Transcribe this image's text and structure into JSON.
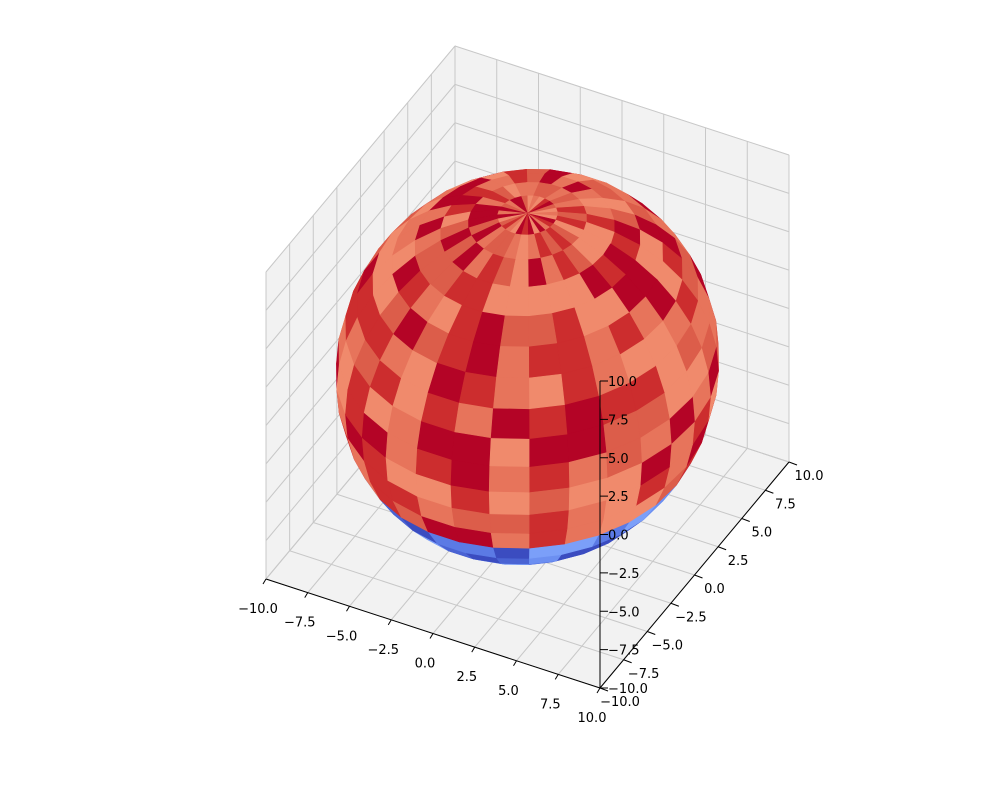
{
  "chart_data": {
    "type": "surface3d",
    "shape": "sphere",
    "radius": 10,
    "center": [
      0,
      0,
      0
    ],
    "xlim": [
      -10,
      10
    ],
    "ylim": [
      -10,
      10
    ],
    "zlim": [
      -10,
      10
    ],
    "x_ticks": [
      -10.0,
      -7.5,
      -5.0,
      -2.5,
      0.0,
      2.5,
      5.0,
      7.5,
      10.0
    ],
    "y_ticks": [
      -10.0,
      -7.5,
      -5.0,
      -2.5,
      0.0,
      2.5,
      5.0,
      7.5,
      10.0
    ],
    "z_ticks": [
      -10.0,
      -7.5,
      -5.0,
      -2.5,
      0.0,
      2.5,
      5.0,
      7.5,
      10.0
    ],
    "x_tick_labels": [
      "−10.0",
      "−7.5",
      "−5.0",
      "−2.5",
      "0.0",
      "2.5",
      "5.0",
      "7.5",
      "10.0"
    ],
    "y_tick_labels": [
      "−10.0",
      "−7.5",
      "−5.0",
      "−2.5",
      "0.0",
      "2.5",
      "5.0",
      "7.5",
      "10.0"
    ],
    "z_tick_labels": [
      "−10.0",
      "−7.5",
      "−5.0",
      "−2.5",
      "0.0",
      "2.5",
      "5.0",
      "7.5",
      "10.0"
    ],
    "colormap": "coolwarm",
    "color_split_z": -5,
    "upper_colors": [
      "#b40426",
      "#cc2d2e",
      "#dc5d4a",
      "#e7745b",
      "#f08a6c"
    ],
    "lower_colors": [
      "#3b4cc0",
      "#4a63d3",
      "#5b7ae5",
      "#6c8ff1",
      "#7b9ff9"
    ],
    "grid": true,
    "pane_color": "#f2f2f2",
    "view": {
      "elev": 30,
      "azim": -60
    }
  }
}
